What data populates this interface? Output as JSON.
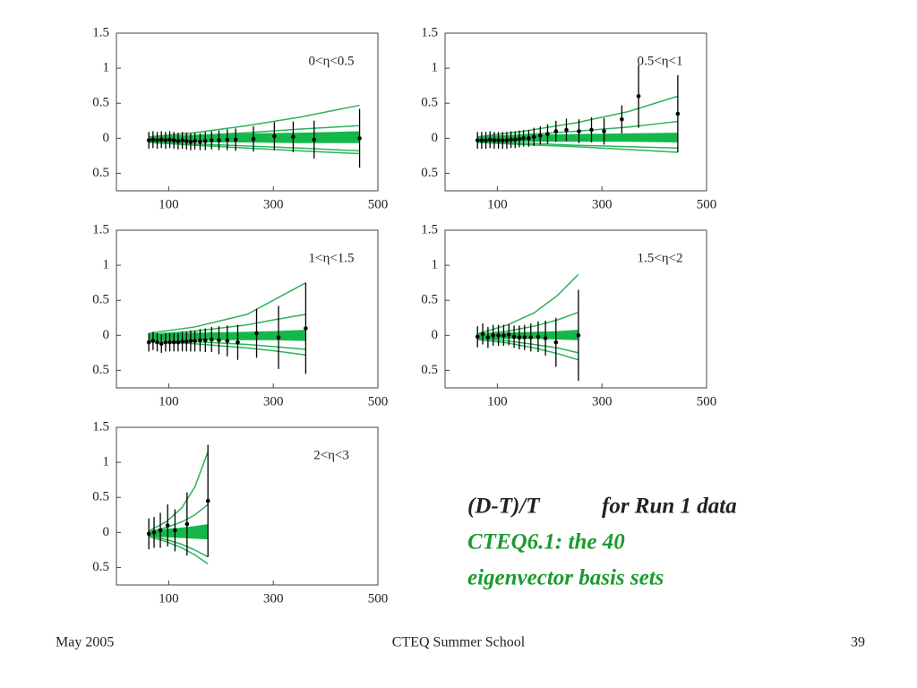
{
  "slide": {
    "heading_black_1": "(D-T)/T",
    "heading_black_2": "for Run 1 data",
    "heading_green_1": "CTEQ6.1: the 40",
    "heading_green_2": "eigenvector basis sets",
    "footer_left": "May 2005",
    "footer_center": "CTEQ Summer School",
    "footer_right": "39"
  },
  "chart_data": [
    {
      "type": "scatter",
      "annotation": "0<η<0.5",
      "xlim": [
        0,
        500
      ],
      "xticks": [
        100,
        300,
        500
      ],
      "ylim": [
        -0.75,
        1.5
      ],
      "yticks": [
        1.5,
        1,
        0.5,
        0,
        {
          "value": -0.5,
          "label": "0.5"
        }
      ],
      "color": "#000000",
      "curve_color": "#2db35a",
      "band_color": "#14b84a",
      "x": [
        62,
        70,
        78,
        86,
        94,
        102,
        110,
        118,
        126,
        134,
        142,
        150,
        160,
        170,
        182,
        196,
        212,
        228,
        262,
        302,
        338,
        378,
        465
      ],
      "values": [
        -0.03,
        -0.02,
        -0.03,
        -0.02,
        -0.03,
        -0.02,
        -0.03,
        -0.04,
        -0.03,
        -0.04,
        -0.05,
        -0.04,
        -0.05,
        -0.04,
        -0.03,
        -0.03,
        -0.02,
        -0.02,
        -0.01,
        0.03,
        0.02,
        -0.02,
        0
      ],
      "errors": [
        0.12,
        0.12,
        0.12,
        0.12,
        0.12,
        0.12,
        0.12,
        0.12,
        0.12,
        0.12,
        0.12,
        0.12,
        0.12,
        0.13,
        0.13,
        0.14,
        0.15,
        0.16,
        0.18,
        0.2,
        0.22,
        0.27,
        0.42
      ],
      "curves": [
        {
          "x": [
            62,
            150,
            250,
            350,
            465
          ],
          "values": [
            0.02,
            0.08,
            0.18,
            0.3,
            0.47
          ]
        },
        {
          "x": [
            62,
            150,
            250,
            350,
            465
          ],
          "values": [
            0.01,
            0.04,
            0.08,
            0.13,
            0.18
          ]
        },
        {
          "x": [
            62,
            150,
            250,
            350,
            465
          ],
          "values": [
            -0.05,
            -0.08,
            -0.11,
            -0.14,
            -0.18
          ]
        },
        {
          "x": [
            62,
            150,
            250,
            350,
            465
          ],
          "values": [
            -0.06,
            -0.1,
            -0.14,
            -0.18,
            -0.22
          ]
        }
      ],
      "band": {
        "x": [
          62,
          150,
          250,
          350,
          465
        ],
        "lower": [
          -0.06,
          -0.06,
          -0.06,
          -0.07,
          -0.07
        ],
        "upper": [
          0.03,
          0.05,
          0.07,
          0.08,
          0.1
        ]
      }
    },
    {
      "type": "scatter",
      "annotation": "0.5<η<1",
      "xlim": [
        0,
        500
      ],
      "xticks": [
        100,
        300,
        500
      ],
      "ylim": [
        -0.75,
        1.5
      ],
      "yticks": [
        1.5,
        1,
        0.5,
        0,
        {
          "value": -0.5,
          "label": "0.5"
        }
      ],
      "color": "#000000",
      "curve_color": "#2db35a",
      "band_color": "#14b84a",
      "x": [
        62,
        70,
        78,
        86,
        94,
        102,
        110,
        118,
        126,
        134,
        142,
        150,
        160,
        170,
        182,
        196,
        212,
        232,
        256,
        280,
        304,
        338,
        370,
        445
      ],
      "values": [
        -0.03,
        -0.03,
        -0.03,
        -0.02,
        -0.03,
        -0.03,
        -0.03,
        -0.03,
        -0.02,
        -0.02,
        -0.01,
        0,
        0,
        0.02,
        0.04,
        0.06,
        0.1,
        0.12,
        0.1,
        0.12,
        0.1,
        0.27,
        0.6,
        0.35
      ],
      "errors": [
        0.12,
        0.12,
        0.12,
        0.12,
        0.12,
        0.12,
        0.12,
        0.12,
        0.12,
        0.12,
        0.12,
        0.12,
        0.12,
        0.13,
        0.13,
        0.14,
        0.15,
        0.16,
        0.17,
        0.18,
        0.19,
        0.2,
        0.45,
        0.55
      ],
      "curves": [
        {
          "x": [
            62,
            150,
            250,
            350,
            445
          ],
          "values": [
            0.02,
            0.1,
            0.22,
            0.38,
            0.6
          ]
        },
        {
          "x": [
            62,
            150,
            250,
            350,
            445
          ],
          "values": [
            0.01,
            0.05,
            0.1,
            0.16,
            0.24
          ]
        },
        {
          "x": [
            62,
            150,
            250,
            350,
            445
          ],
          "values": [
            -0.05,
            -0.07,
            -0.1,
            -0.12,
            -0.14
          ]
        },
        {
          "x": [
            62,
            150,
            250,
            350,
            445
          ],
          "values": [
            -0.06,
            -0.09,
            -0.12,
            -0.16,
            -0.2
          ]
        }
      ],
      "band": {
        "x": [
          62,
          150,
          250,
          350,
          445
        ],
        "lower": [
          -0.06,
          -0.05,
          -0.05,
          -0.05,
          -0.06
        ],
        "upper": [
          0.03,
          0.05,
          0.06,
          0.07,
          0.08
        ]
      }
    },
    {
      "type": "scatter",
      "annotation": "1<η<1.5",
      "xlim": [
        0,
        500
      ],
      "xticks": [
        100,
        300,
        500
      ],
      "ylim": [
        -0.75,
        1.5
      ],
      "yticks": [
        1.5,
        1,
        0.5,
        0,
        {
          "value": -0.5,
          "label": "0.5"
        }
      ],
      "color": "#000000",
      "curve_color": "#2db35a",
      "band_color": "#14b84a",
      "x": [
        62,
        70,
        78,
        86,
        94,
        102,
        110,
        118,
        126,
        134,
        142,
        150,
        160,
        170,
        182,
        196,
        212,
        232,
        268,
        310,
        362
      ],
      "values": [
        -0.1,
        -0.08,
        -0.1,
        -0.12,
        -0.1,
        -0.1,
        -0.1,
        -0.1,
        -0.09,
        -0.09,
        -0.08,
        -0.08,
        -0.07,
        -0.07,
        -0.06,
        -0.07,
        -0.08,
        -0.1,
        0.03,
        -0.03,
        0.1
      ],
      "errors": [
        0.13,
        0.13,
        0.13,
        0.13,
        0.13,
        0.13,
        0.13,
        0.13,
        0.14,
        0.14,
        0.15,
        0.15,
        0.16,
        0.17,
        0.18,
        0.2,
        0.22,
        0.25,
        0.35,
        0.45,
        0.65
      ],
      "curves": [
        {
          "x": [
            62,
            150,
            250,
            300,
            362
          ],
          "values": [
            0.03,
            0.12,
            0.3,
            0.5,
            0.75
          ]
        },
        {
          "x": [
            62,
            150,
            250,
            300,
            362
          ],
          "values": [
            0.01,
            0.06,
            0.15,
            0.22,
            0.3
          ]
        },
        {
          "x": [
            62,
            150,
            250,
            300,
            362
          ],
          "values": [
            -0.06,
            -0.09,
            -0.13,
            -0.16,
            -0.2
          ]
        },
        {
          "x": [
            62,
            150,
            250,
            300,
            362
          ],
          "values": [
            -0.08,
            -0.12,
            -0.18,
            -0.22,
            -0.28
          ]
        }
      ],
      "band": {
        "x": [
          62,
          150,
          250,
          300,
          362
        ],
        "lower": [
          -0.08,
          -0.07,
          -0.07,
          -0.07,
          -0.08
        ],
        "upper": [
          0.03,
          0.04,
          0.05,
          0.06,
          0.08
        ]
      }
    },
    {
      "type": "scatter",
      "annotation": "1.5<η<2",
      "xlim": [
        0,
        500
      ],
      "xticks": [
        100,
        300,
        500
      ],
      "ylim": [
        -0.75,
        1.5
      ],
      "yticks": [
        1.5,
        1,
        0.5,
        0,
        {
          "value": -0.5,
          "label": "0.5"
        }
      ],
      "color": "#000000",
      "curve_color": "#2db35a",
      "band_color": "#14b84a",
      "x": [
        62,
        72,
        82,
        92,
        102,
        112,
        122,
        132,
        142,
        152,
        164,
        178,
        192,
        212,
        255
      ],
      "values": [
        -0.02,
        0.02,
        -0.03,
        0,
        0,
        0,
        0.01,
        -0.02,
        -0.03,
        -0.03,
        -0.03,
        -0.02,
        -0.04,
        -0.1,
        0
      ],
      "errors": [
        0.15,
        0.15,
        0.15,
        0.15,
        0.15,
        0.15,
        0.15,
        0.16,
        0.17,
        0.18,
        0.2,
        0.22,
        0.25,
        0.35,
        0.65
      ],
      "curves": [
        {
          "x": [
            62,
            120,
            170,
            215,
            255
          ],
          "values": [
            0.02,
            0.15,
            0.32,
            0.57,
            0.87
          ]
        },
        {
          "x": [
            62,
            120,
            170,
            215,
            255
          ],
          "values": [
            0.01,
            0.06,
            0.13,
            0.22,
            0.33
          ]
        },
        {
          "x": [
            62,
            120,
            170,
            215,
            255
          ],
          "values": [
            -0.04,
            -0.08,
            -0.13,
            -0.18,
            -0.25
          ]
        },
        {
          "x": [
            62,
            120,
            170,
            215,
            255
          ],
          "values": [
            -0.06,
            -0.11,
            -0.18,
            -0.26,
            -0.35
          ]
        }
      ],
      "band": {
        "x": [
          62,
          120,
          170,
          215,
          255
        ],
        "lower": [
          -0.06,
          -0.05,
          -0.05,
          -0.06,
          -0.07
        ],
        "upper": [
          0.03,
          0.04,
          0.05,
          0.06,
          0.08
        ]
      }
    },
    {
      "type": "scatter",
      "annotation": "2<η<3",
      "xlim": [
        0,
        500
      ],
      "xticks": [
        100,
        300,
        500
      ],
      "ylim": [
        -0.75,
        1.5
      ],
      "yticks": [
        1.5,
        1,
        0.5,
        0,
        {
          "value": -0.5,
          "label": "0.5"
        }
      ],
      "color": "#000000",
      "curve_color": "#2db35a",
      "band_color": "#14b84a",
      "x": [
        62,
        72,
        84,
        98,
        112,
        135,
        175
      ],
      "values": [
        -0.02,
        0,
        0.03,
        0.1,
        0.03,
        0.12,
        0.45
      ],
      "errors": [
        0.22,
        0.22,
        0.25,
        0.3,
        0.3,
        0.45,
        0.8
      ],
      "curves": [
        {
          "x": [
            62,
            95,
            125,
            150,
            175
          ],
          "values": [
            0.02,
            0.15,
            0.35,
            0.65,
            1.15
          ]
        },
        {
          "x": [
            62,
            95,
            125,
            150,
            175
          ],
          "values": [
            0.01,
            0.07,
            0.15,
            0.25,
            0.4
          ]
        },
        {
          "x": [
            62,
            95,
            125,
            150,
            175
          ],
          "values": [
            -0.04,
            -0.1,
            -0.17,
            -0.25,
            -0.35
          ]
        },
        {
          "x": [
            62,
            95,
            125,
            150,
            175
          ],
          "values": [
            -0.06,
            -0.13,
            -0.22,
            -0.32,
            -0.45
          ]
        }
      ],
      "band": {
        "x": [
          62,
          95,
          125,
          150,
          175
        ],
        "lower": [
          -0.06,
          -0.07,
          -0.08,
          -0.09,
          -0.1
        ],
        "upper": [
          0.03,
          0.05,
          0.07,
          0.09,
          0.12
        ]
      }
    }
  ]
}
